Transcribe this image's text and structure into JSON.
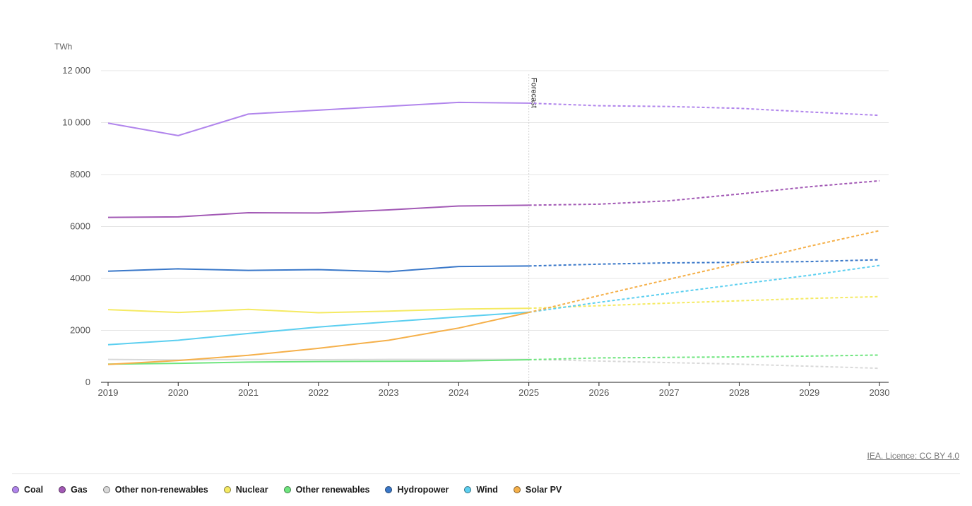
{
  "chart_data": {
    "type": "line",
    "ylabel": "TWh",
    "x": [
      2019,
      2020,
      2021,
      2022,
      2023,
      2024,
      2025,
      2026,
      2027,
      2028,
      2029,
      2030
    ],
    "x_tick_labels": [
      "2019",
      "2020",
      "2021",
      "2022",
      "2023",
      "2024",
      "2025",
      "2026",
      "2027",
      "2028",
      "2029",
      "2030"
    ],
    "ylim": [
      0,
      12000
    ],
    "y_ticks": [
      0,
      2000,
      4000,
      6000,
      8000,
      10000,
      12000
    ],
    "y_tick_labels": [
      "0",
      "2000",
      "4000",
      "6000",
      "8000",
      "10 000",
      "12 000"
    ],
    "forecast_start": 2025,
    "forecast_label": "Forecast",
    "grid": true,
    "legend_position": "bottom-left",
    "series": [
      {
        "name": "Coal",
        "color": "#b185ec",
        "values": [
          9980,
          9500,
          10330,
          10480,
          10630,
          10780,
          10750,
          10650,
          10620,
          10550,
          10410,
          10280
        ]
      },
      {
        "name": "Gas",
        "color": "#a259b5",
        "values": [
          6350,
          6370,
          6530,
          6520,
          6640,
          6790,
          6820,
          6860,
          6990,
          7250,
          7530,
          7760
        ]
      },
      {
        "name": "Other non-renewables",
        "color": "#d9d9d9",
        "values": [
          880,
          860,
          880,
          870,
          880,
          880,
          880,
          820,
          760,
          700,
          620,
          540
        ]
      },
      {
        "name": "Nuclear",
        "color": "#f5ea63",
        "values": [
          2800,
          2690,
          2810,
          2680,
          2740,
          2820,
          2850,
          2950,
          3050,
          3140,
          3230,
          3300
        ]
      },
      {
        "name": "Other renewables",
        "color": "#6ee57e",
        "values": [
          700,
          730,
          780,
          800,
          810,
          820,
          870,
          940,
          960,
          980,
          1010,
          1050
        ]
      },
      {
        "name": "Hydropower",
        "color": "#3a78c9",
        "values": [
          4280,
          4370,
          4310,
          4340,
          4260,
          4460,
          4480,
          4550,
          4600,
          4620,
          4650,
          4720
        ]
      },
      {
        "name": "Wind",
        "color": "#5ccff0",
        "values": [
          1450,
          1620,
          1880,
          2130,
          2330,
          2520,
          2700,
          3080,
          3430,
          3780,
          4120,
          4500
        ]
      },
      {
        "name": "Solar PV",
        "color": "#f5b04a",
        "values": [
          690,
          840,
          1040,
          1310,
          1620,
          2090,
          2690,
          3340,
          3970,
          4590,
          5240,
          5840
        ]
      }
    ]
  },
  "footer": {
    "licence": "IEA. Licence: CC BY 4.0"
  }
}
